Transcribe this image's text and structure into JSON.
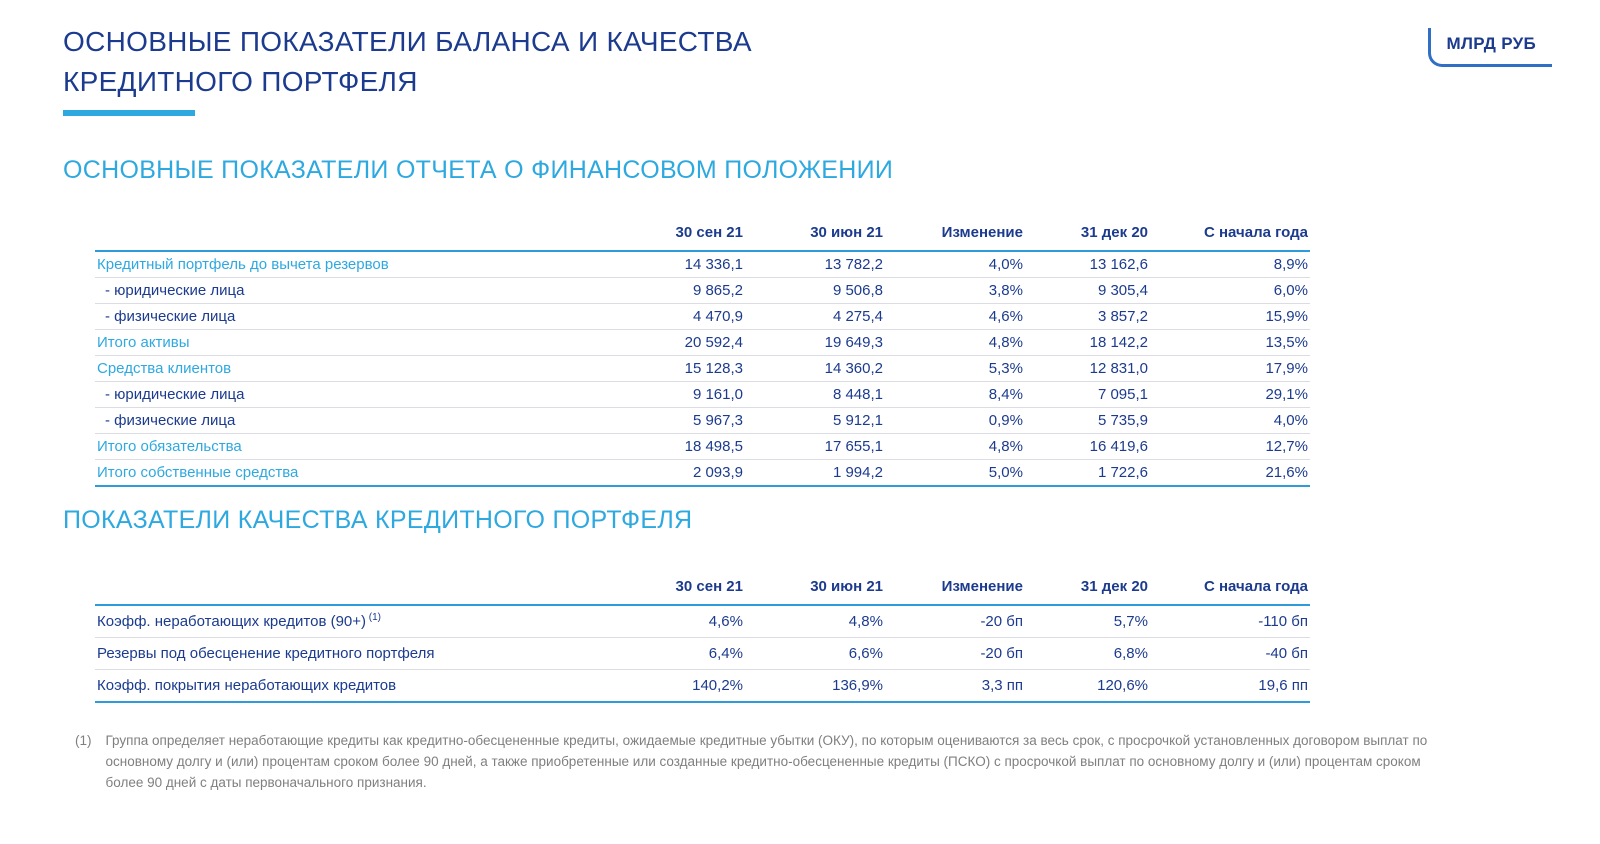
{
  "page": {
    "title_line1": "ОСНОВНЫЕ ПОКАЗАТЕЛИ БАЛАНСА И КАЧЕСТВА",
    "title_line2": "КРЕДИТНОГО ПОРТФЕЛЯ",
    "unit_badge": "МЛРД РУБ"
  },
  "colors": {
    "dark_blue": "#1c3b8e",
    "light_blue": "#2ea9e0",
    "table_line_blue": "#2f9bd8",
    "footnote_gray": "#7f7f7f"
  },
  "section1": {
    "heading": "ОСНОВНЫЕ ПОКАЗАТЕЛИ ОТЧЕТА О ФИНАНСОВОМ ПОЛОЖЕНИИ",
    "columns": [
      "30 сен 21",
      "30 июн 21",
      "Изменение",
      "31 дек 20",
      "С начала года"
    ],
    "rows": [
      {
        "label": "Кредитный портфель до вычета резервов",
        "style": "highlight",
        "values": [
          "14 336,1",
          "13 782,2",
          "4,0%",
          "13 162,6",
          "8,9%"
        ]
      },
      {
        "label": "- юридические лица",
        "style": "sub",
        "values": [
          "9 865,2",
          "9 506,8",
          "3,8%",
          "9 305,4",
          "6,0%"
        ]
      },
      {
        "label": "- физические лица",
        "style": "sub",
        "values": [
          "4 470,9",
          "4 275,4",
          "4,6%",
          "3 857,2",
          "15,9%"
        ]
      },
      {
        "label": "Итого активы",
        "style": "highlight",
        "values": [
          "20 592,4",
          "19 649,3",
          "4,8%",
          "18 142,2",
          "13,5%"
        ]
      },
      {
        "label": "Средства клиентов",
        "style": "highlight",
        "values": [
          "15 128,3",
          "14 360,2",
          "5,3%",
          "12 831,0",
          "17,9%"
        ]
      },
      {
        "label": "- юридические лица",
        "style": "sub",
        "values": [
          "9 161,0",
          "8 448,1",
          "8,4%",
          "7 095,1",
          "29,1%"
        ]
      },
      {
        "label": "- физические лица",
        "style": "sub",
        "values": [
          "5 967,3",
          "5 912,1",
          "0,9%",
          "5 735,9",
          "4,0%"
        ]
      },
      {
        "label": "Итого обязательства",
        "style": "highlight",
        "values": [
          "18 498,5",
          "17 655,1",
          "4,8%",
          "16 419,6",
          "12,7%"
        ]
      },
      {
        "label": "Итого собственные средства",
        "style": "highlight",
        "values": [
          "2 093,9",
          "1 994,2",
          "5,0%",
          "1 722,6",
          "21,6%"
        ]
      }
    ]
  },
  "section2": {
    "heading": "ПОКАЗАТЕЛИ КАЧЕСТВА КРЕДИТНОГО ПОРТФЕЛЯ",
    "columns": [
      "30 сен 21",
      "30 июн 21",
      "Изменение",
      "31 дек 20",
      "С начала года"
    ],
    "rows": [
      {
        "label": "Коэфф. неработающих кредитов (90+)",
        "superscript": "(1)",
        "values": [
          "4,6%",
          "4,8%",
          "-20 бп",
          "5,7%",
          "-110 бп"
        ]
      },
      {
        "label": "Резервы под обесценение кредитного портфеля",
        "values": [
          "6,4%",
          "6,6%",
          "-20 бп",
          "6,8%",
          "-40 бп"
        ]
      },
      {
        "label": "Коэфф. покрытия неработающих кредитов",
        "values": [
          "140,2%",
          "136,9%",
          "3,3 пп",
          "120,6%",
          "19,6 пп"
        ]
      }
    ]
  },
  "footnote": {
    "marker": "(1)",
    "text": "Группа определяет неработающие кредиты как кредитно-обесцененные кредиты, ожидаемые кредитные убытки (ОКУ), по которым оцениваются за весь срок, с просрочкой установленных договором выплат по основному долгу и (или) процентам сроком более 90 дней, а также приобретенные или созданные кредитно-обесцененные кредиты (ПСКО) с просрочкой выплат по основному долгу и (или) процентам сроком более 90 дней с даты первоначального признания."
  }
}
